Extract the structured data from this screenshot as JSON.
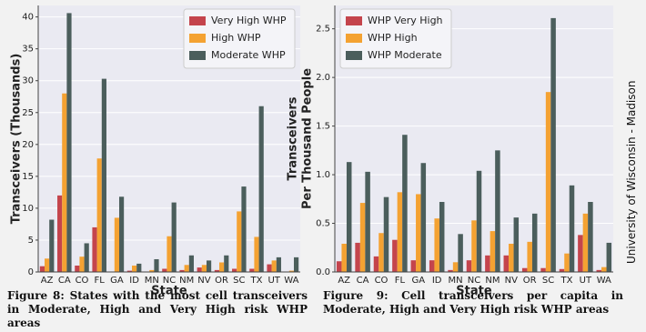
{
  "chart_data": [
    {
      "type": "bar",
      "xlabel": "State",
      "ylabel": [
        "Transceivers (Thousands)"
      ],
      "categories": [
        "AZ",
        "CA",
        "CO",
        "FL",
        "GA",
        "ID",
        "MN",
        "NC",
        "NM",
        "NV",
        "OR",
        "SC",
        "TX",
        "UT",
        "WA"
      ],
      "series": [
        {
          "name": "Very High WHP",
          "color": "#c4444c",
          "values": [
            0.9,
            12,
            1.0,
            7,
            0,
            0.2,
            0,
            0.5,
            0.3,
            0.7,
            0.3,
            0.5,
            0.5,
            1.2,
            0
          ]
        },
        {
          "name": "High WHP",
          "color": "#f4a232",
          "values": [
            2.1,
            28,
            2.4,
            17.8,
            8.5,
            1.0,
            0.3,
            5.6,
            1.1,
            1.1,
            1.5,
            9.5,
            5.5,
            1.8,
            0.2
          ]
        },
        {
          "name": "Moderate WHP",
          "color": "#4b5e5c",
          "values": [
            8.2,
            40.6,
            4.5,
            30.3,
            11.8,
            1.3,
            2.0,
            10.9,
            2.6,
            1.8,
            2.6,
            13.4,
            26,
            2.3,
            2.3
          ]
        }
      ],
      "ylim": [
        0,
        41.8
      ],
      "yticks": [
        0,
        5,
        10,
        15,
        20,
        25,
        30,
        35,
        40
      ],
      "grid": true,
      "legend": "upper right"
    },
    {
      "type": "bar",
      "xlabel": "State",
      "ylabel": [
        "Transceivers",
        "Per Thousand People"
      ],
      "categories": [
        "AZ",
        "CA",
        "CO",
        "FL",
        "GA",
        "ID",
        "MN",
        "NC",
        "NM",
        "NV",
        "OR",
        "SC",
        "TX",
        "UT",
        "WA"
      ],
      "series": [
        {
          "name": "WHP Very High",
          "color": "#c4444c",
          "values": [
            0.11,
            0.3,
            0.16,
            0.33,
            0.12,
            0.12,
            0.02,
            0.12,
            0.17,
            0.17,
            0.04,
            0.04,
            0.03,
            0.38,
            0.02
          ]
        },
        {
          "name": "WHP High",
          "color": "#f4a232",
          "values": [
            0.29,
            0.71,
            0.4,
            0.82,
            0.8,
            0.55,
            0.1,
            0.53,
            0.42,
            0.29,
            0.31,
            1.85,
            0.19,
            0.6,
            0.05
          ]
        },
        {
          "name": "WHP Moderate",
          "color": "#4b5e5c",
          "values": [
            1.13,
            1.03,
            0.77,
            1.41,
            1.12,
            0.72,
            0.39,
            1.04,
            1.25,
            0.56,
            0.6,
            2.61,
            0.89,
            0.72,
            0.3
          ]
        }
      ],
      "ylim": [
        0,
        2.74
      ],
      "yticks": [
        {
          "value": 0,
          "label": "0.0"
        },
        0.5,
        {
          "value": 1,
          "label": "1.0"
        },
        1.5,
        {
          "value": 2,
          "label": "2.0"
        },
        2.5
      ],
      "grid": true,
      "legend": "upper left"
    }
  ],
  "captions": [
    "Figure 8: States with the most cell transceivers in Moderate, High and Very High risk WHP areas",
    "Figure 9: Cell transceivers per capita in Moderate, High and Very High risk WHP areas"
  ],
  "side_text": "University of Wisconsin - Madison"
}
